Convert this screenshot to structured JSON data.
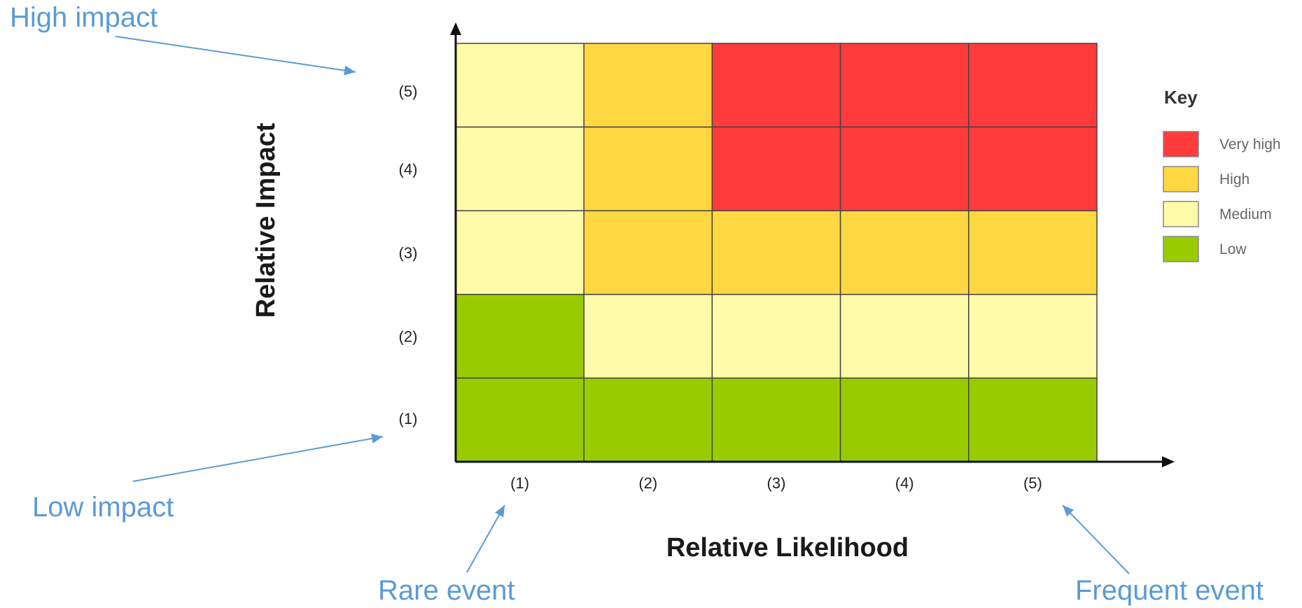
{
  "chart_data": {
    "type": "heatmap",
    "xlabel": "Relative Likelihood",
    "ylabel": "Relative Impact",
    "x_categories": [
      "(1)",
      "(2)",
      "(3)",
      "(4)",
      "(5)"
    ],
    "y_categories": [
      "(1)",
      "(2)",
      "(3)",
      "(4)",
      "(5)"
    ],
    "grid_top_to_bottom": [
      [
        "Medium",
        "High",
        "Very high",
        "Very high",
        "Very high"
      ],
      [
        "Medium",
        "High",
        "Very high",
        "Very high",
        "Very high"
      ],
      [
        "Medium",
        "High",
        "High",
        "High",
        "High"
      ],
      [
        "Low",
        "Medium",
        "Medium",
        "Medium",
        "Medium"
      ],
      [
        "Low",
        "Low",
        "Low",
        "Low",
        "Low"
      ]
    ],
    "legend": {
      "title": "Key",
      "placement": "right",
      "items": [
        {
          "label": "Very high",
          "color": "#ff3b3b"
        },
        {
          "label": "High",
          "color": "#ffd740"
        },
        {
          "label": "Medium",
          "color": "#fffba8"
        },
        {
          "label": "Low",
          "color": "#99cc00"
        }
      ]
    }
  },
  "annotations": {
    "high_impact": "High impact",
    "low_impact": "Low impact",
    "rare_event": "Rare event",
    "frequent_event": "Frequent event"
  },
  "colors": {
    "annotation": "#5b9bd5",
    "axis": "#111111",
    "cell_border": "#444444"
  }
}
